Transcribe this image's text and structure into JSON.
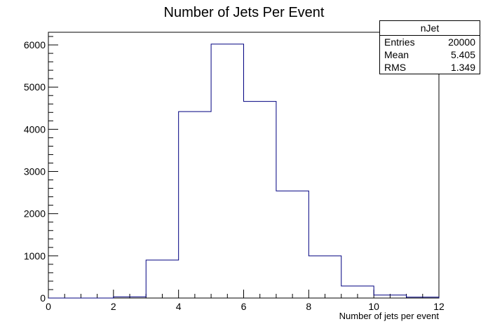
{
  "chart_data": {
    "type": "bar",
    "title": "Number of Jets Per Event",
    "xlabel": "Number of jets per event",
    "ylabel": "",
    "xlim": [
      0,
      12
    ],
    "ylim": [
      0,
      6300
    ],
    "x_ticks": [
      0,
      2,
      4,
      6,
      8,
      10,
      12
    ],
    "y_ticks": [
      0,
      1000,
      2000,
      3000,
      4000,
      5000,
      6000
    ],
    "grid": false,
    "line_color": "#000080",
    "bin_edges": [
      0,
      1,
      2,
      3,
      4,
      5,
      6,
      7,
      8,
      9,
      10,
      11,
      12
    ],
    "values": [
      0,
      0,
      30,
      900,
      4420,
      6020,
      4660,
      2540,
      1000,
      285,
      70,
      20
    ],
    "stats": {
      "title": "nJet",
      "rows": [
        {
          "label": "Entries",
          "value": "20000"
        },
        {
          "label": "Mean",
          "value": "5.405"
        },
        {
          "label": "RMS",
          "value": "1.349"
        }
      ]
    }
  }
}
